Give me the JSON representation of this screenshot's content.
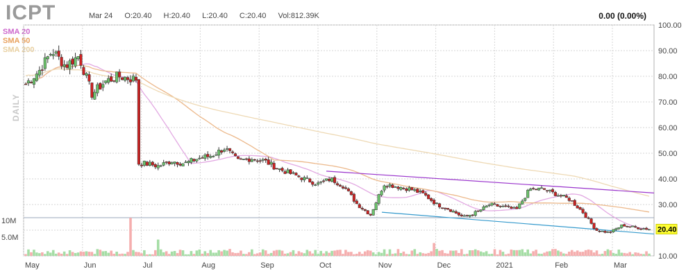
{
  "header": {
    "ticker": "ICPT",
    "date": "Mar 24",
    "open": "O:20.40",
    "high": "H:20.40",
    "low": "L:20.40",
    "close": "C:20.40",
    "volume": "Vol:812.39K",
    "change": "0.00 (0.00%)"
  },
  "legend": [
    {
      "label": "SMA 20",
      "color": "#cc66cc"
    },
    {
      "label": "SMA 50",
      "color": "#e8a05c"
    },
    {
      "label": "SMA 200",
      "color": "#e8cf9f"
    }
  ],
  "period_label": "DAILY",
  "colors": {
    "up": "#6cc36c",
    "down": "#cc2222",
    "vol_up": "#a5dda5",
    "vol_down": "#f5aeae",
    "trend_upper": "#9933cc",
    "trend_lower": "#3399cc"
  },
  "chart_data": {
    "type": "candlestick",
    "title": "ICPT",
    "ylim": [
      10,
      100
    ],
    "y_ticks": [
      100,
      90,
      80,
      70,
      60,
      50,
      40,
      30,
      20,
      10
    ],
    "y_tick_labels": [
      "100.00",
      "90.00",
      "80.00",
      "70.00",
      "60.00",
      "50.00",
      "40.00",
      "30.00",
      "20.00",
      "10.00"
    ],
    "x_ticks": [
      {
        "label": "May",
        "month": 0
      },
      {
        "label": "Jun",
        "month": 1
      },
      {
        "label": "Jul",
        "month": 2
      },
      {
        "label": "Aug",
        "month": 3
      },
      {
        "label": "Sep",
        "month": 4
      },
      {
        "label": "Oct",
        "month": 5
      },
      {
        "label": "Nov",
        "month": 6
      },
      {
        "label": "Dec",
        "month": 7
      },
      {
        "label": "2021",
        "month": 8
      },
      {
        "label": "Feb",
        "month": 9
      },
      {
        "label": "Mar",
        "month": 10
      }
    ],
    "volume_ticks": [
      "10M",
      "5.0M"
    ],
    "last_price": "20.40",
    "close_series": [
      [
        "2020-05-01",
        77
      ],
      [
        "2020-05-08",
        82
      ],
      [
        "2020-05-15",
        90
      ],
      [
        "2020-05-22",
        84
      ],
      [
        "2020-05-29",
        88
      ],
      [
        "2020-06-05",
        73
      ],
      [
        "2020-06-12",
        78
      ],
      [
        "2020-06-19",
        80
      ],
      [
        "2020-06-26",
        79
      ],
      [
        "2020-07-03",
        46
      ],
      [
        "2020-07-10",
        45
      ],
      [
        "2020-07-17",
        47
      ],
      [
        "2020-07-24",
        46
      ],
      [
        "2020-07-31",
        48
      ],
      [
        "2020-08-07",
        49
      ],
      [
        "2020-08-14",
        52
      ],
      [
        "2020-08-21",
        47
      ],
      [
        "2020-08-28",
        48
      ],
      [
        "2020-09-04",
        47
      ],
      [
        "2020-09-11",
        44
      ],
      [
        "2020-09-18",
        42
      ],
      [
        "2020-09-25",
        40
      ],
      [
        "2020-10-02",
        38
      ],
      [
        "2020-10-09",
        40
      ],
      [
        "2020-10-16",
        37
      ],
      [
        "2020-10-23",
        30
      ],
      [
        "2020-10-30",
        26
      ],
      [
        "2020-11-06",
        38
      ],
      [
        "2020-11-13",
        37
      ],
      [
        "2020-11-20",
        36
      ],
      [
        "2020-11-27",
        34
      ],
      [
        "2020-12-04",
        30
      ],
      [
        "2020-12-11",
        28
      ],
      [
        "2020-12-18",
        25
      ],
      [
        "2020-12-25",
        27
      ],
      [
        "2021-01-01",
        30
      ],
      [
        "2021-01-08",
        29
      ],
      [
        "2021-01-15",
        28
      ],
      [
        "2021-01-22",
        36
      ],
      [
        "2021-01-29",
        36
      ],
      [
        "2021-02-05",
        34
      ],
      [
        "2021-02-12",
        32
      ],
      [
        "2021-02-19",
        27
      ],
      [
        "2021-02-26",
        20
      ],
      [
        "2021-03-05",
        19
      ],
      [
        "2021-03-12",
        22
      ],
      [
        "2021-03-19",
        21
      ],
      [
        "2021-03-24",
        20.4
      ]
    ]
  }
}
